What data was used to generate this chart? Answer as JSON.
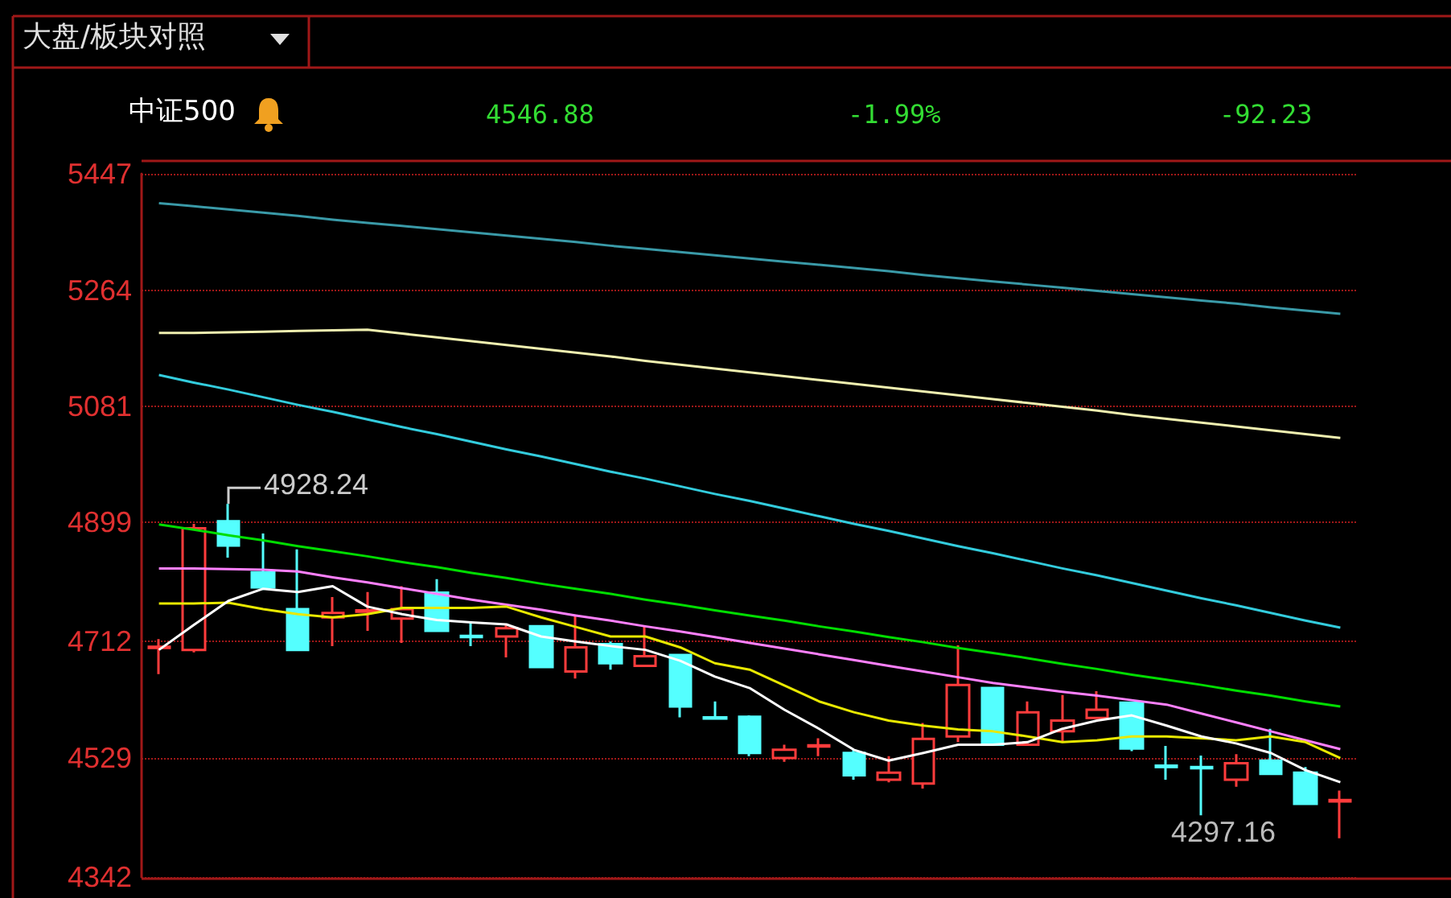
{
  "chart_data": {
    "type": "candlestick",
    "title": "大盘/板块对照",
    "subtitle": "中证500",
    "annotations": [
      "4546.88",
      "-1.99%",
      "-92.23",
      "4928.24",
      "4297.16"
    ],
    "categories": [
      null,
      null,
      null,
      null,
      null,
      null,
      null,
      null,
      null,
      null,
      null,
      null,
      null,
      null,
      null,
      null,
      null,
      null,
      null,
      null,
      null,
      null,
      null,
      null,
      null,
      null,
      null,
      null,
      null,
      null,
      null,
      null,
      null,
      null,
      null
    ],
    "ohlc": [
      [
        4702,
        4716,
        4661,
        4704
      ],
      [
        4699,
        4897,
        4695,
        4890
      ],
      [
        4901,
        4928.24,
        4844,
        4863
      ],
      [
        4821,
        4882,
        4793,
        4797
      ],
      [
        4763,
        4857,
        4699,
        4699
      ],
      [
        4750,
        4782,
        4705,
        4757
      ],
      [
        4759,
        4790,
        4729,
        4761
      ],
      [
        4748,
        4799,
        4710,
        4763
      ],
      [
        4789,
        4810,
        4729,
        4729
      ],
      [
        4721,
        4742,
        4705,
        4719
      ],
      [
        4720,
        4739,
        4687,
        4733
      ],
      [
        4736,
        4736,
        4672,
        4672
      ],
      [
        4665,
        4754,
        4654,
        4703
      ],
      [
        4708,
        4712,
        4668,
        4678
      ],
      [
        4674,
        4736,
        4674,
        4689
      ],
      [
        4691,
        4691,
        4593,
        4610
      ],
      [
        4593,
        4618,
        4591,
        4591
      ],
      [
        4594,
        4596,
        4532,
        4537
      ],
      [
        4529,
        4550,
        4523,
        4542
      ],
      [
        4547,
        4560,
        4532,
        4549
      ],
      [
        4537,
        4542,
        4495,
        4502
      ],
      [
        4495,
        4532,
        4491,
        4506
      ],
      [
        4489,
        4584,
        4481,
        4559
      ],
      [
        4563,
        4706,
        4554,
        4644
      ],
      [
        4639,
        4639,
        4550,
        4550
      ],
      [
        4550,
        4618,
        4550,
        4601
      ],
      [
        4571,
        4628,
        4554,
        4588
      ],
      [
        4592,
        4634,
        4592,
        4605
      ],
      [
        4616,
        4616,
        4540,
        4544
      ],
      [
        4517,
        4548,
        4495,
        4515
      ],
      [
        4515,
        4533,
        4439,
        4513
      ],
      [
        4495,
        4535,
        4484,
        4521
      ],
      [
        4525,
        4575,
        4504,
        4504
      ],
      [
        4506,
        4515,
        4457,
        4457
      ],
      [
        4461,
        4478,
        4403,
        4463
      ]
    ],
    "colors": [
      "#ff3c3c",
      "#ff3c3c",
      "#54ffff",
      "#54ffff",
      "#54ffff",
      "#ff3c3c",
      "#ff3c3c",
      "#ff3c3c",
      "#54ffff",
      "#54ffff",
      "#ff3c3c",
      "#54ffff",
      "#ff3c3c",
      "#54ffff",
      "#ff3c3c",
      "#54ffff",
      "#54ffff",
      "#54ffff",
      "#ff3c3c",
      "#ff3c3c",
      "#54ffff",
      "#ff3c3c",
      "#ff3c3c",
      "#ff3c3c",
      "#54ffff",
      "#ff3c3c",
      "#ff3c3c",
      "#ff3c3c",
      "#54ffff",
      "#54ffff",
      "#54ffff",
      "#ff3c3c",
      "#54ffff",
      "#54ffff",
      "#ff3c3c"
    ],
    "series": [
      {
        "type": "line",
        "color": "#3a9aa8",
        "values": [
          5401,
          5396,
          5391,
          5386,
          5381,
          5375,
          5370,
          5365,
          5360,
          5355,
          5350,
          5345,
          5340,
          5334,
          5329,
          5324,
          5319,
          5314,
          5309,
          5304,
          5299,
          5294,
          5288,
          5283,
          5278,
          5273,
          5268,
          5263,
          5258,
          5253,
          5248,
          5243,
          5237,
          5232,
          5227
        ]
      },
      {
        "type": "line",
        "color": "#f0f0b0",
        "values": [
          5197,
          5197,
          5198,
          5199,
          5200,
          5201,
          5202,
          5196,
          5190,
          5184,
          5178,
          5172,
          5166,
          5160,
          5153,
          5147,
          5141,
          5135,
          5129,
          5123,
          5117,
          5111,
          5105,
          5099,
          5093,
          5087,
          5081,
          5075,
          5068,
          5062,
          5056,
          5050,
          5044,
          5038,
          5032
        ]
      },
      {
        "type": "line",
        "color": "#33ccdd",
        "values": [
          5131,
          5119,
          5108,
          5096,
          5084,
          5073,
          5061,
          5049,
          5038,
          5026,
          5014,
          5003,
          4991,
          4979,
          4968,
          4956,
          4944,
          4933,
          4921,
          4909,
          4897,
          4886,
          4874,
          4862,
          4851,
          4839,
          4827,
          4816,
          4804,
          4792,
          4780,
          4769,
          4757,
          4745,
          4734
        ]
      },
      {
        "type": "line",
        "color": "#00dd00",
        "values": [
          4896,
          4888,
          4879,
          4871,
          4862,
          4854,
          4846,
          4837,
          4829,
          4820,
          4812,
          4803,
          4795,
          4787,
          4778,
          4770,
          4761,
          4753,
          4745,
          4736,
          4728,
          4719,
          4711,
          4702,
          4694,
          4686,
          4677,
          4669,
          4660,
          4652,
          4644,
          4635,
          4627,
          4618,
          4610
        ]
      },
      {
        "type": "line",
        "color": "#ff80ff",
        "values": [
          4827,
          4827,
          4826,
          4825,
          4822,
          4813,
          4805,
          4796,
          4787,
          4778,
          4770,
          4762,
          4753,
          4745,
          4736,
          4728,
          4719,
          4710,
          4701,
          4692,
          4683,
          4674,
          4665,
          4656,
          4647,
          4640,
          4633,
          4627,
          4620,
          4613,
          4599,
          4585,
          4571,
          4557,
          4543
        ]
      },
      {
        "type": "line",
        "color": "#e8e800",
        "values": [
          4772,
          4772,
          4773,
          4763,
          4755,
          4750,
          4755,
          4765,
          4765,
          4765,
          4767,
          4750,
          4735,
          4720,
          4720,
          4703,
          4678,
          4668,
          4643,
          4618,
          4601,
          4588,
          4580,
          4574,
          4571,
          4563,
          4554,
          4557,
          4563,
          4563,
          4560,
          4557,
          4563,
          4554,
          4529
        ]
      },
      {
        "type": "line",
        "color": "#ffffff",
        "values": [
          4699,
          4738,
          4776,
          4795,
          4790,
          4799,
          4767,
          4755,
          4746,
          4742,
          4739,
          4720,
          4712,
          4705,
          4699,
          4682,
          4657,
          4639,
          4605,
          4575,
          4542,
          4525,
          4537,
          4550,
          4550,
          4554,
          4575,
          4588,
          4596,
          4580,
          4563,
          4552,
          4537,
          4510,
          4491
        ]
      }
    ],
    "ylim": [
      4342,
      5447
    ],
    "yticks": [
      4342,
      4529,
      4712,
      4899,
      5081,
      5264,
      5447
    ],
    "grid": "y",
    "tick_labels": "y",
    "marker": "none",
    "line_style": "solid"
  }
}
